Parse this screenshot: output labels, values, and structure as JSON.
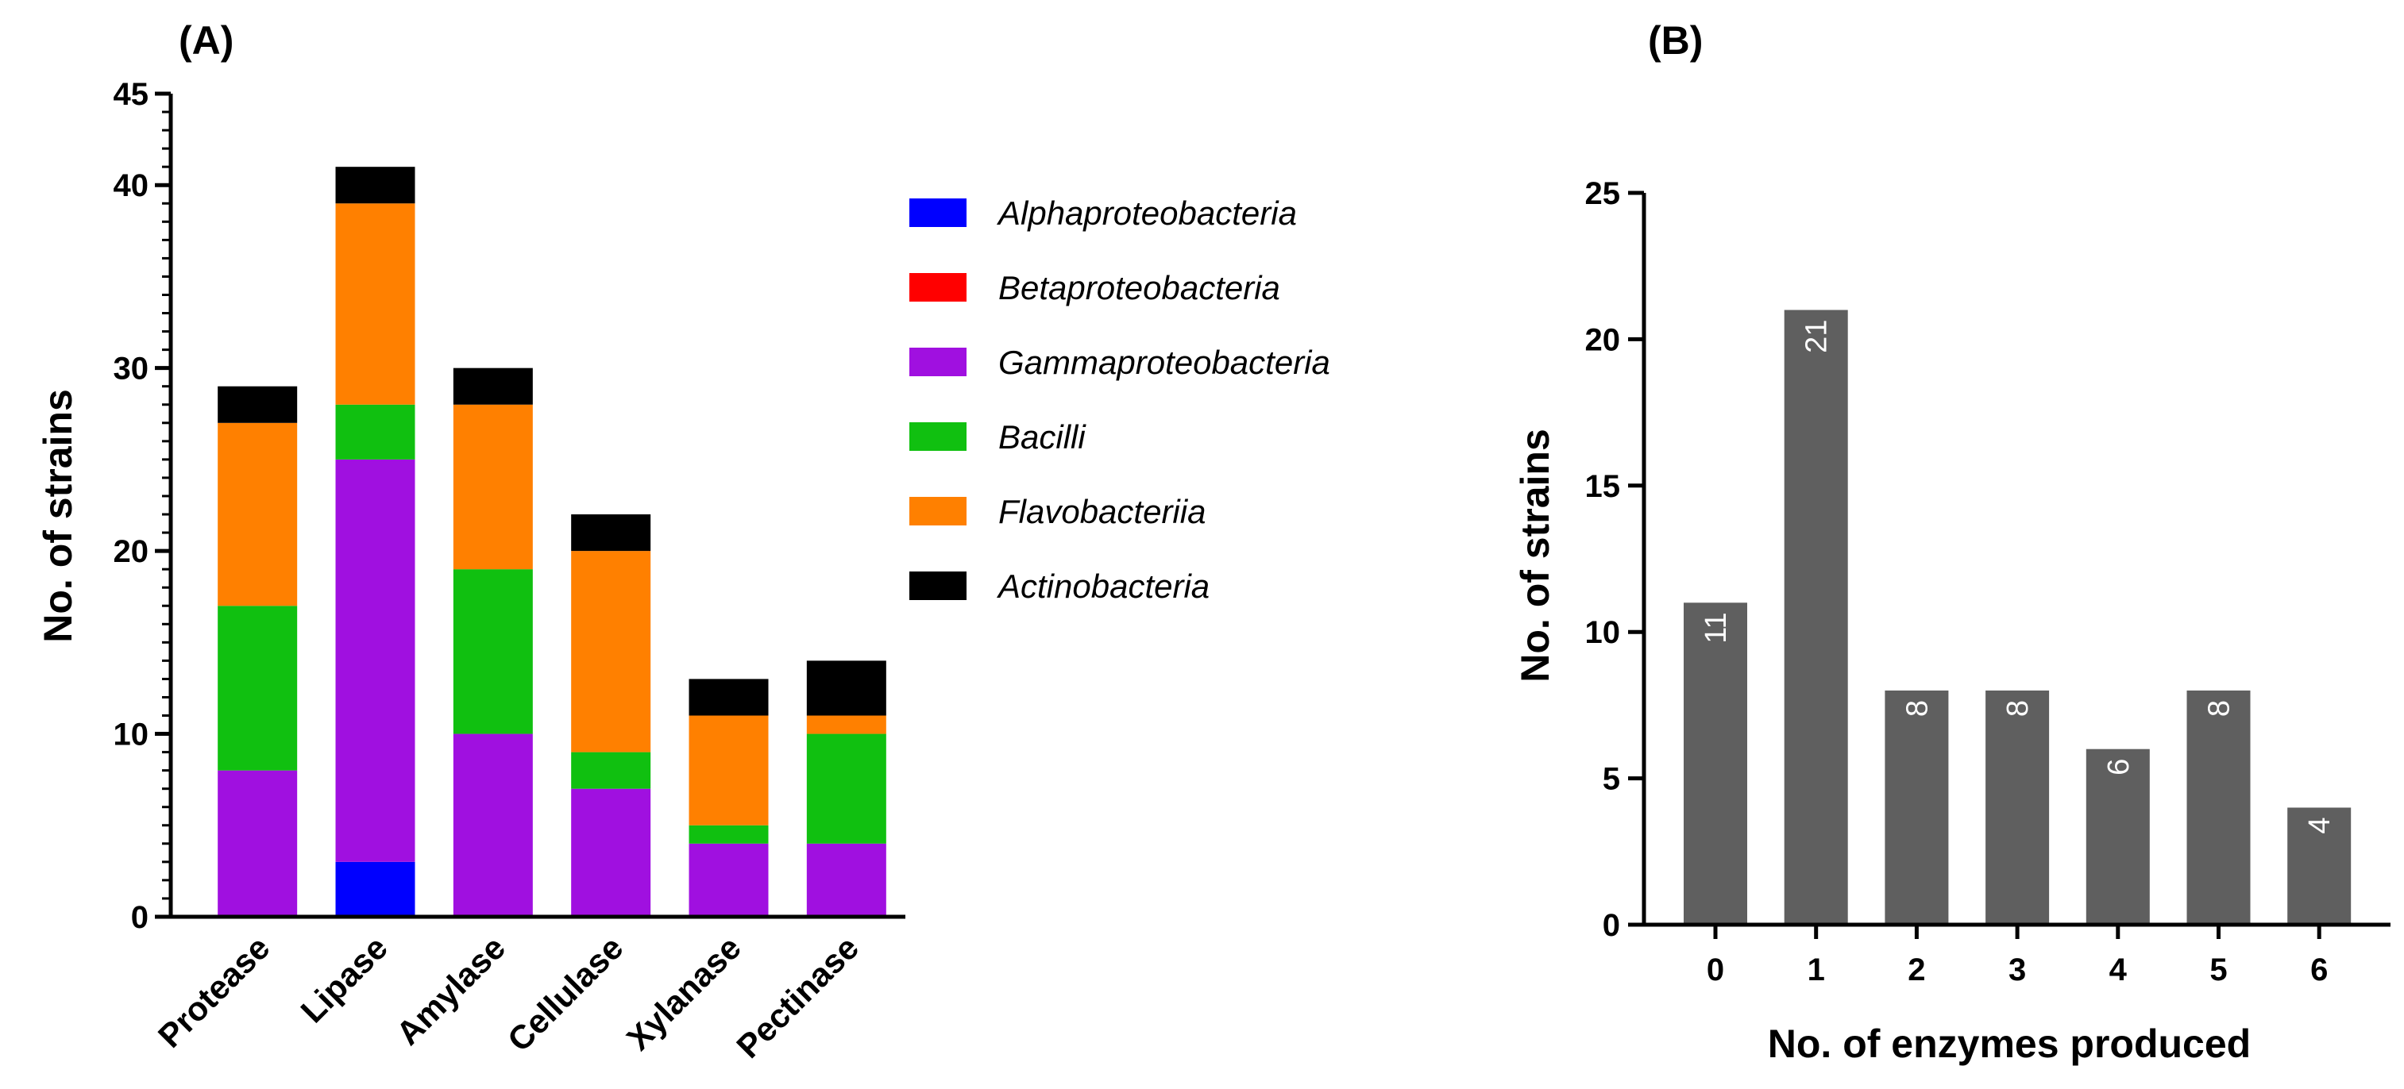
{
  "chart_data": [
    {
      "panel": "(A)",
      "type": "bar",
      "stacked": true,
      "title": "",
      "xlabel": "",
      "ylabel": "No. of strains",
      "ylim": [
        0,
        45
      ],
      "yticks": [
        0,
        10,
        20,
        30,
        40,
        45
      ],
      "categories": [
        "Protease",
        "Lipase",
        "Amylase",
        "Cellulase",
        "Xylanase",
        "Pectinase"
      ],
      "series": [
        {
          "name": "Alphaproteobacteria",
          "color": "#0000ff",
          "values": [
            0,
            3,
            0,
            0,
            0,
            0
          ]
        },
        {
          "name": "Betaproteobacteria",
          "color": "#ff0000",
          "values": [
            0,
            0,
            0,
            0,
            0,
            0
          ]
        },
        {
          "name": "Gammaproteobacteria",
          "color": "#a010e0",
          "values": [
            8,
            22,
            10,
            7,
            4,
            4
          ]
        },
        {
          "name": "Bacilli",
          "color": "#10c010",
          "values": [
            9,
            3,
            9,
            2,
            1,
            6
          ]
        },
        {
          "name": "Flavobacteriia",
          "color": "#ff8000",
          "values": [
            10,
            11,
            9,
            11,
            6,
            1
          ]
        },
        {
          "name": "Actinobacteria",
          "color": "#000000",
          "values": [
            2,
            2,
            2,
            2,
            2,
            3
          ]
        }
      ],
      "legend_position": "right"
    },
    {
      "panel": "(B)",
      "type": "bar",
      "title": "",
      "xlabel": "No. of enzymes produced",
      "ylabel": "No. of strains",
      "ylim": [
        0,
        25
      ],
      "yticks": [
        0,
        5,
        10,
        15,
        20,
        25
      ],
      "categories": [
        "0",
        "1",
        "2",
        "3",
        "4",
        "5",
        "6"
      ],
      "values": [
        11,
        21,
        8,
        8,
        6,
        8,
        4
      ],
      "data_labels": [
        "11",
        "21",
        "8",
        "8",
        "6",
        "8",
        "4"
      ],
      "bar_color": "#5f5f5f"
    }
  ]
}
